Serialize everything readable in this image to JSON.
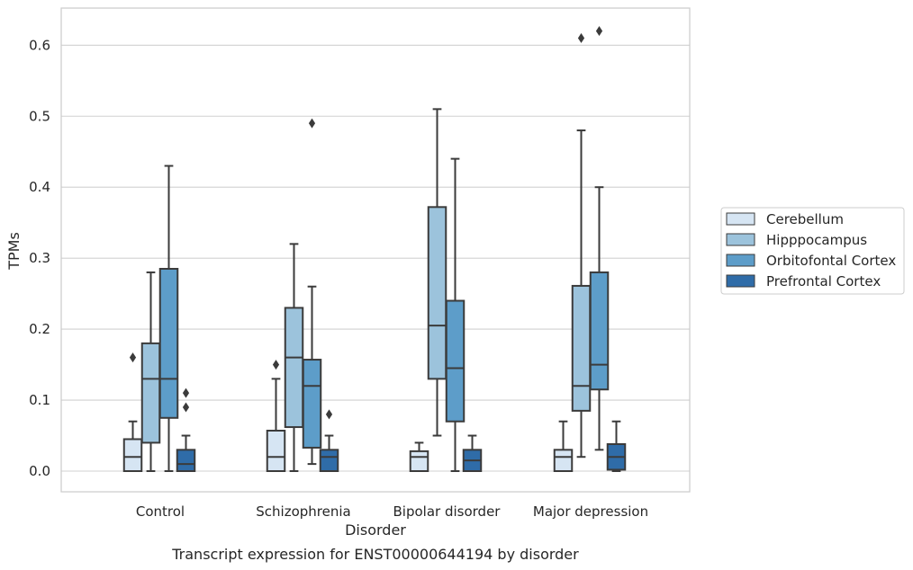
{
  "chart_data": {
    "type": "boxplot",
    "title": "Transcript expression for ENST00000644194 by disorder",
    "xlabel": "Disorder",
    "ylabel": "TPMs",
    "ylim": [
      -0.03,
      0.655
    ],
    "yticks": [
      0.0,
      0.1,
      0.2,
      0.3,
      0.4,
      0.5,
      0.6
    ],
    "ytick_labels": [
      "0.0",
      "0.1",
      "0.2",
      "0.3",
      "0.4",
      "0.5",
      "0.6"
    ],
    "grid": "horizontal",
    "legend_placement": "right",
    "categories": [
      "Control",
      "Schizophrenia",
      "Bipolar disorder",
      "Major depression"
    ],
    "series": [
      {
        "name": "Cerebellum",
        "color": "#d6e5f3",
        "boxes": [
          {
            "whislo": 0.0,
            "q1": 0.0,
            "med": 0.02,
            "q3": 0.045,
            "whishi": 0.07,
            "fliers": [
              0.16
            ]
          },
          {
            "whislo": 0.0,
            "q1": 0.0,
            "med": 0.02,
            "q3": 0.057,
            "whishi": 0.13,
            "fliers": [
              0.15
            ]
          },
          {
            "whislo": 0.0,
            "q1": 0.0,
            "med": 0.02,
            "q3": 0.028,
            "whishi": 0.04,
            "fliers": []
          },
          {
            "whislo": 0.0,
            "q1": 0.0,
            "med": 0.02,
            "q3": 0.03,
            "whishi": 0.07,
            "fliers": []
          }
        ]
      },
      {
        "name": "Hipppocampus",
        "color": "#9cc3dc",
        "boxes": [
          {
            "whislo": 0.0,
            "q1": 0.04,
            "med": 0.13,
            "q3": 0.18,
            "whishi": 0.28,
            "fliers": []
          },
          {
            "whislo": 0.0,
            "q1": 0.062,
            "med": 0.16,
            "q3": 0.23,
            "whishi": 0.32,
            "fliers": []
          },
          {
            "whislo": 0.05,
            "q1": 0.13,
            "med": 0.205,
            "q3": 0.372,
            "whishi": 0.51,
            "fliers": []
          },
          {
            "whislo": 0.02,
            "q1": 0.085,
            "med": 0.12,
            "q3": 0.261,
            "whishi": 0.48,
            "fliers": [
              0.61
            ]
          }
        ]
      },
      {
        "name": "Orbitofontal Cortex",
        "color": "#5d9dc9",
        "boxes": [
          {
            "whislo": 0.0,
            "q1": 0.075,
            "med": 0.13,
            "q3": 0.285,
            "whishi": 0.43,
            "fliers": []
          },
          {
            "whislo": 0.01,
            "q1": 0.033,
            "med": 0.12,
            "q3": 0.157,
            "whishi": 0.26,
            "fliers": [
              0.49
            ]
          },
          {
            "whislo": 0.0,
            "q1": 0.07,
            "med": 0.145,
            "q3": 0.24,
            "whishi": 0.44,
            "fliers": []
          },
          {
            "whislo": 0.03,
            "q1": 0.115,
            "med": 0.15,
            "q3": 0.28,
            "whishi": 0.4,
            "fliers": [
              0.62
            ]
          }
        ]
      },
      {
        "name": "Prefrontal Cortex",
        "color": "#2f6ca8",
        "boxes": [
          {
            "whislo": 0.0,
            "q1": 0.0,
            "med": 0.01,
            "q3": 0.03,
            "whishi": 0.05,
            "fliers": [
              0.09,
              0.11
            ]
          },
          {
            "whislo": 0.0,
            "q1": 0.0,
            "med": 0.02,
            "q3": 0.03,
            "whishi": 0.05,
            "fliers": [
              0.08
            ]
          },
          {
            "whislo": 0.0,
            "q1": 0.0,
            "med": 0.015,
            "q3": 0.03,
            "whishi": 0.05,
            "fliers": []
          },
          {
            "whislo": 0.0,
            "q1": 0.002,
            "med": 0.02,
            "q3": 0.038,
            "whishi": 0.07,
            "fliers": []
          }
        ]
      }
    ]
  }
}
